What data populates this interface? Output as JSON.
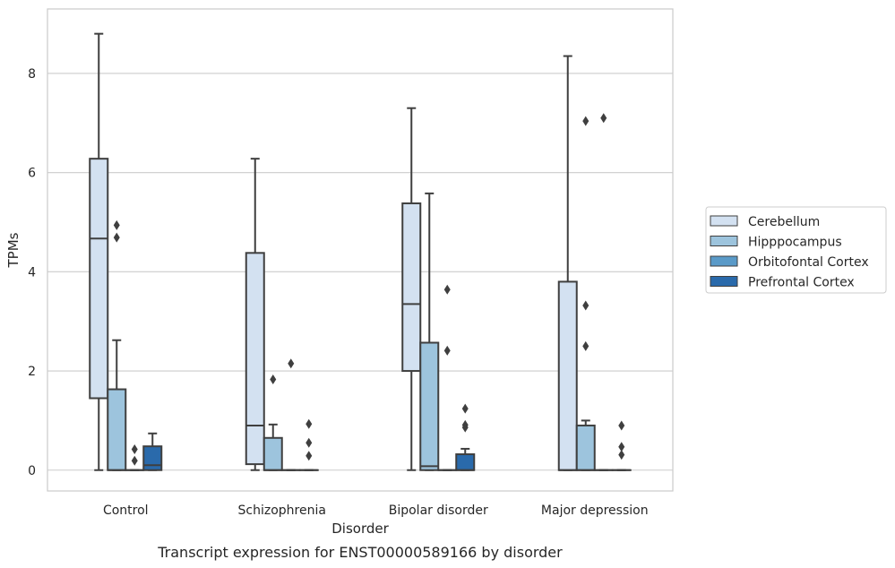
{
  "chart_data": {
    "type": "boxplot",
    "caption": "Transcript expression for ENST00000589166 by disorder",
    "xlabel": "Disorder",
    "ylabel": "TPMs",
    "ylim": [
      -0.42,
      9.3
    ],
    "yticks": [
      0,
      2,
      4,
      6,
      8
    ],
    "grid": true,
    "legend_position": "right",
    "categories": [
      "Control",
      "Schizophrenia",
      "Bipolar disorder",
      "Major depression"
    ],
    "series": [
      {
        "name": "Cerebellum",
        "color": "#d3e1f1",
        "boxes": [
          {
            "whisker_low": 0,
            "q1": 1.45,
            "median": 4.67,
            "q3": 6.28,
            "whisker_high": 8.8,
            "outliers": []
          },
          {
            "whisker_low": 0,
            "q1": 0.12,
            "median": 0.9,
            "q3": 4.38,
            "whisker_high": 6.28,
            "outliers": []
          },
          {
            "whisker_low": 0,
            "q1": 2.0,
            "median": 3.35,
            "q3": 5.38,
            "whisker_high": 7.3,
            "outliers": []
          },
          {
            "whisker_low": 0,
            "q1": 0,
            "median": 0,
            "q3": 3.8,
            "whisker_high": 8.35,
            "outliers": []
          }
        ]
      },
      {
        "name": "Hipppocampus",
        "color": "#9dc4dd",
        "boxes": [
          {
            "whisker_low": 0,
            "q1": 0,
            "median": 0,
            "q3": 1.63,
            "whisker_high": 2.62,
            "outliers": [
              4.94,
              4.69
            ]
          },
          {
            "whisker_low": 0,
            "q1": 0,
            "median": 0,
            "q3": 0.65,
            "whisker_high": 0.92,
            "outliers": [
              1.83
            ]
          },
          {
            "whisker_low": 0,
            "q1": 0,
            "median": 0.08,
            "q3": 2.57,
            "whisker_high": 5.58,
            "outliers": []
          },
          {
            "whisker_low": 0,
            "q1": 0,
            "median": 0,
            "q3": 0.9,
            "whisker_high": 1.0,
            "outliers": [
              3.32,
              2.5,
              7.04
            ]
          }
        ]
      },
      {
        "name": "Orbitofontal Cortex",
        "color": "#5a9ac8",
        "boxes": [
          {
            "whisker_low": 0,
            "q1": 0,
            "median": 0,
            "q3": 0,
            "whisker_high": 0,
            "outliers": [
              0.42,
              0.19
            ]
          },
          {
            "whisker_low": 0,
            "q1": 0,
            "median": 0,
            "q3": 0,
            "whisker_high": 0,
            "outliers": [
              2.15
            ]
          },
          {
            "whisker_low": 0,
            "q1": 0,
            "median": 0,
            "q3": 0,
            "whisker_high": 0,
            "outliers": [
              3.64,
              2.41
            ]
          },
          {
            "whisker_low": 0,
            "q1": 0,
            "median": 0,
            "q3": 0,
            "whisker_high": 0,
            "outliers": [
              7.1
            ]
          }
        ]
      },
      {
        "name": "Prefrontal Cortex",
        "color": "#2a6aab",
        "boxes": [
          {
            "whisker_low": 0,
            "q1": 0,
            "median": 0.1,
            "q3": 0.48,
            "whisker_high": 0.74,
            "outliers": []
          },
          {
            "whisker_low": 0,
            "q1": 0,
            "median": 0,
            "q3": 0,
            "whisker_high": 0,
            "outliers": [
              0.93,
              0.55,
              0.29
            ]
          },
          {
            "whisker_low": 0,
            "q1": 0,
            "median": 0,
            "q3": 0.32,
            "whisker_high": 0.43,
            "outliers": [
              1.24,
              0.91,
              0.86
            ]
          },
          {
            "whisker_low": 0,
            "q1": 0,
            "median": 0,
            "q3": 0,
            "whisker_high": 0,
            "outliers": [
              0.9,
              0.47,
              0.31
            ]
          }
        ]
      }
    ]
  }
}
